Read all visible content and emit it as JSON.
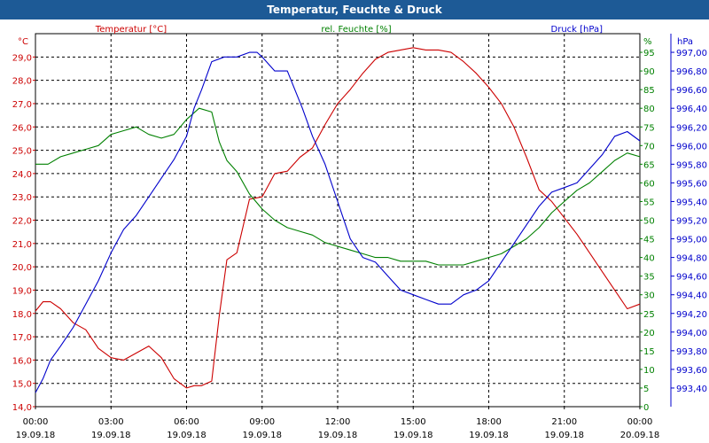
{
  "window": {
    "title": "Temperatur, Feuchte & Druck"
  },
  "colors": {
    "temperature": "#cc0000",
    "humidity": "#008000",
    "pressure": "#0000cc",
    "titlebar": "#1d5a96",
    "grid": "#000000"
  },
  "chart_data": {
    "type": "line",
    "title": "Temperatur, Feuchte & Druck",
    "grid": true,
    "x": {
      "ticks": [
        {
          "time": "00:00",
          "date": "19.09.18",
          "h": 0
        },
        {
          "time": "03:00",
          "date": "19.09.18",
          "h": 3
        },
        {
          "time": "06:00",
          "date": "19.09.18",
          "h": 6
        },
        {
          "time": "09:00",
          "date": "19.09.18",
          "h": 9
        },
        {
          "time": "12:00",
          "date": "19.09.18",
          "h": 12
        },
        {
          "time": "15:00",
          "date": "19.09.18",
          "h": 15
        },
        {
          "time": "18:00",
          "date": "19.09.18",
          "h": 18
        },
        {
          "time": "21:00",
          "date": "19.09.18",
          "h": 21
        },
        {
          "time": "00:00",
          "date": "20.09.18",
          "h": 24
        }
      ],
      "range": [
        0,
        24
      ]
    },
    "axes": {
      "left": {
        "unit": "°C",
        "min": 14.0,
        "max": 30.0,
        "ticks": [
          "14,0",
          "15,0",
          "16,0",
          "17,0",
          "18,0",
          "19,0",
          "20,0",
          "21,0",
          "22,0",
          "23,0",
          "24,0",
          "25,0",
          "26,0",
          "27,0",
          "28,0",
          "29,0"
        ]
      },
      "right1": {
        "unit": "%",
        "min": 0,
        "max": 100,
        "ticks": [
          "0",
          "5",
          "10",
          "15",
          "20",
          "25",
          "30",
          "35",
          "40",
          "45",
          "50",
          "55",
          "60",
          "65",
          "70",
          "75",
          "80",
          "85",
          "90",
          "95"
        ]
      },
      "right2": {
        "unit": "hPa",
        "min": 993.2,
        "max": 997.2,
        "ticks": [
          "993,40",
          "993,60",
          "993,80",
          "994,00",
          "994,20",
          "994,40",
          "994,60",
          "994,80",
          "995,00",
          "995,20",
          "995,40",
          "995,60",
          "995,80",
          "996,00",
          "996,20",
          "996,40",
          "996,60",
          "996,80",
          "997,00"
        ]
      }
    },
    "series": [
      {
        "name": "Temperatur [°C]",
        "axis": "left",
        "color": "#cc0000",
        "x": [
          0,
          0.3,
          0.6,
          1.0,
          1.5,
          2.0,
          2.5,
          3.0,
          3.5,
          4.0,
          4.5,
          5.0,
          5.5,
          6.0,
          6.3,
          6.6,
          7.0,
          7.3,
          7.6,
          8.0,
          8.5,
          9.0,
          9.5,
          10.0,
          10.5,
          11.0,
          11.5,
          12.0,
          12.5,
          13.0,
          13.5,
          14.0,
          14.5,
          15.0,
          15.5,
          16.0,
          16.5,
          17.0,
          17.5,
          18.0,
          18.5,
          19.0,
          19.5,
          20.0,
          20.5,
          21.0,
          21.5,
          22.0,
          22.5,
          23.0,
          23.5,
          24.0
        ],
        "values": [
          18.1,
          18.5,
          18.5,
          18.2,
          17.6,
          17.3,
          16.5,
          16.1,
          16.0,
          16.3,
          16.6,
          16.1,
          15.2,
          14.8,
          14.9,
          14.9,
          15.1,
          17.9,
          20.3,
          20.6,
          22.9,
          23.0,
          24.0,
          24.1,
          24.7,
          25.1,
          26.1,
          27.0,
          27.6,
          28.3,
          28.9,
          29.2,
          29.3,
          29.4,
          29.3,
          29.3,
          29.2,
          28.8,
          28.3,
          27.7,
          27.0,
          26.0,
          24.7,
          23.3,
          22.8,
          22.1,
          21.4,
          20.6,
          19.8,
          19.0,
          18.2,
          18.4
        ]
      },
      {
        "name": "rel. Feuchte [%]",
        "axis": "right1",
        "color": "#008000",
        "x": [
          0,
          0.5,
          1.0,
          1.5,
          2.0,
          2.5,
          3.0,
          3.5,
          4.0,
          4.5,
          5.0,
          5.5,
          6.0,
          6.5,
          7.0,
          7.3,
          7.6,
          8.0,
          8.5,
          9.0,
          9.5,
          10.0,
          10.5,
          11.0,
          11.5,
          12.0,
          12.5,
          13.0,
          13.5,
          14.0,
          14.5,
          15.0,
          15.5,
          16.0,
          16.5,
          17.0,
          17.5,
          18.0,
          18.5,
          19.0,
          19.5,
          20.0,
          20.5,
          21.0,
          21.5,
          22.0,
          22.5,
          23.0,
          23.5,
          24.0
        ],
        "values": [
          65,
          65,
          67,
          68,
          69,
          70,
          73,
          74,
          75,
          73,
          72,
          73,
          77,
          80,
          79,
          71,
          66,
          63,
          57,
          53,
          50,
          48,
          47,
          46,
          44,
          43,
          42,
          41,
          40,
          40,
          39,
          39,
          39,
          38,
          38,
          38,
          39,
          40,
          41,
          43,
          45,
          48,
          52,
          55,
          58,
          60,
          63,
          66,
          68,
          67
        ]
      },
      {
        "name": "Druck [hPa]",
        "axis": "right2",
        "color": "#0000cc",
        "x": [
          0,
          0.3,
          0.6,
          1.0,
          1.5,
          2.0,
          2.5,
          3.0,
          3.5,
          4.0,
          4.5,
          5.0,
          5.5,
          6.0,
          6.3,
          6.6,
          7.0,
          7.5,
          8.0,
          8.5,
          8.8,
          9.0,
          9.5,
          10.0,
          10.3,
          10.6,
          11.0,
          11.5,
          12.0,
          12.5,
          13.0,
          13.5,
          14.0,
          14.5,
          15.0,
          15.5,
          16.0,
          16.5,
          17.0,
          17.5,
          18.0,
          18.5,
          19.0,
          19.5,
          20.0,
          20.5,
          21.0,
          21.5,
          22.0,
          22.5,
          23.0,
          23.5,
          24.0
        ],
        "values": [
          993.35,
          993.5,
          993.7,
          993.85,
          994.05,
          994.3,
          994.55,
          994.85,
          995.1,
          995.25,
          995.45,
          995.65,
          995.85,
          996.1,
          996.4,
          996.6,
          996.9,
          996.95,
          996.95,
          997.0,
          997.0,
          996.95,
          996.8,
          996.8,
          996.6,
          996.4,
          996.1,
          995.8,
          995.4,
          995.0,
          994.8,
          994.75,
          994.6,
          994.45,
          994.4,
          994.35,
          994.3,
          994.3,
          994.4,
          994.45,
          994.55,
          994.75,
          994.95,
          995.15,
          995.35,
          995.5,
          995.55,
          995.6,
          995.75,
          995.9,
          996.1,
          996.15,
          996.05
        ]
      }
    ]
  }
}
